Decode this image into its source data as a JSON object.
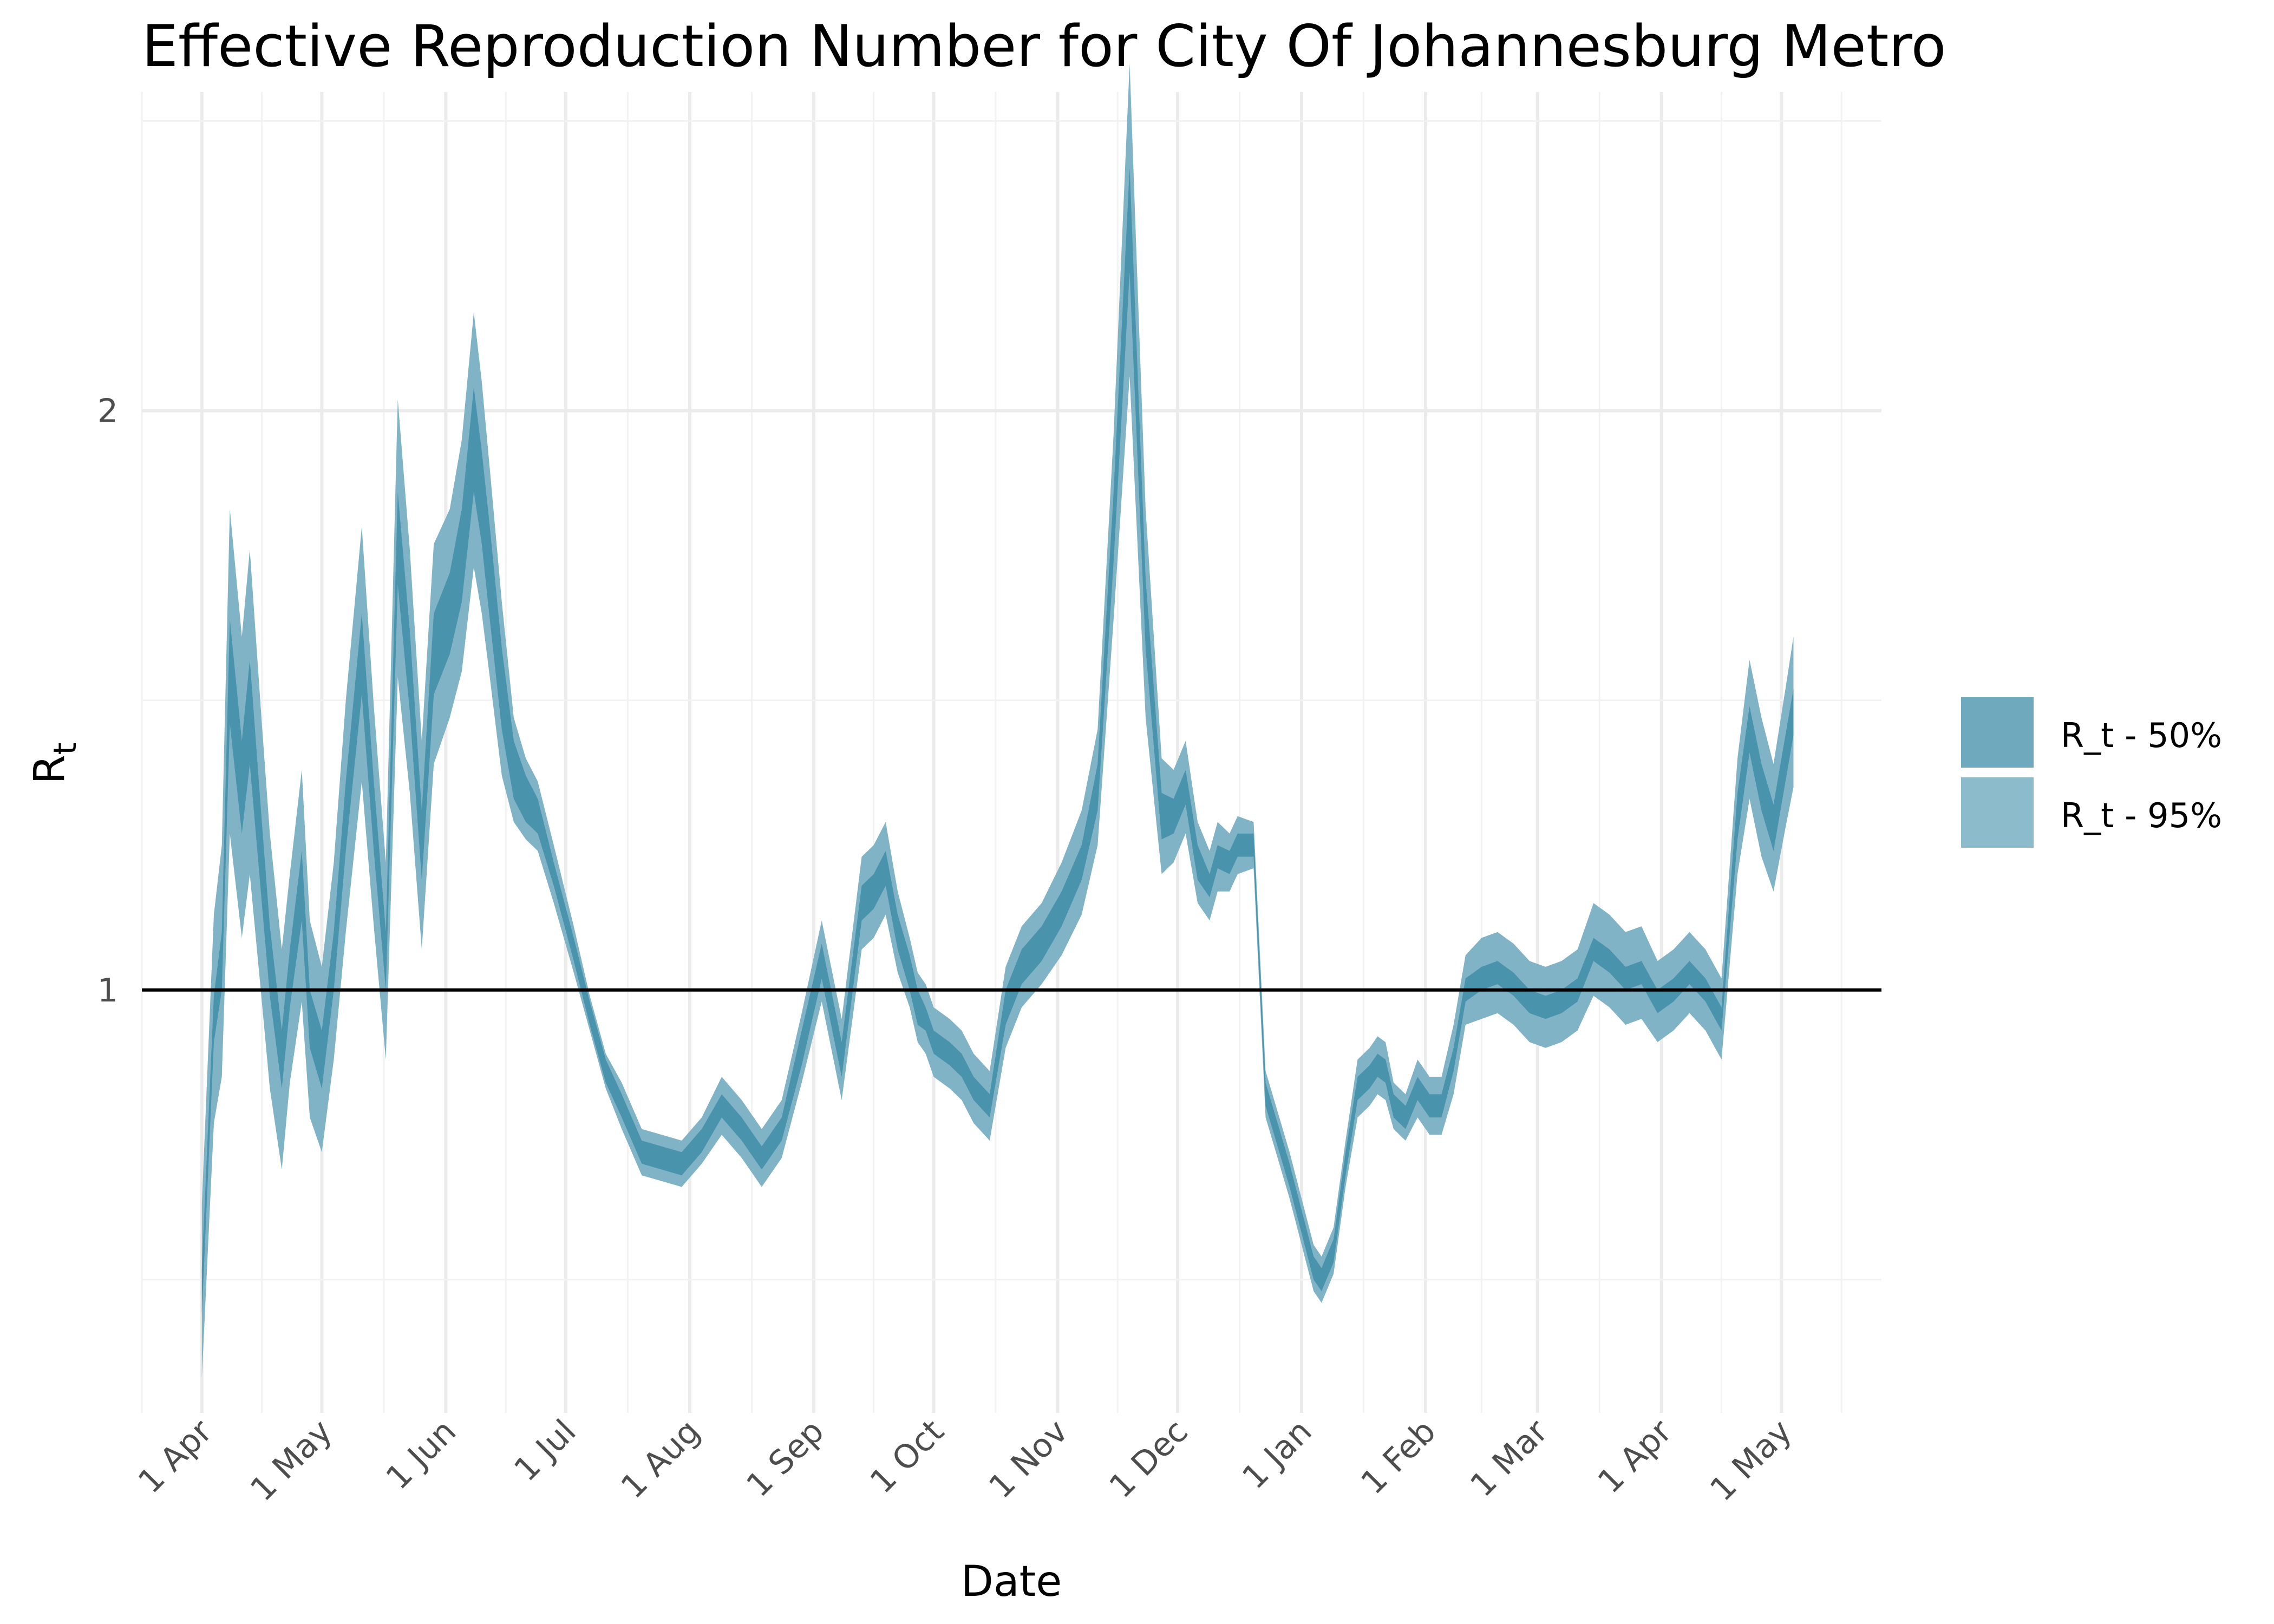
{
  "chart_data": {
    "type": "area",
    "title": "Effective Reproduction Number for City Of Johannesburg Metro",
    "xlabel": "Date",
    "ylabel_main": "R",
    "ylabel_sub": "t",
    "x_ticks": [
      "1 Apr",
      "1 May",
      "1 Jun",
      "1 Jul",
      "1 Aug",
      "1 Sep",
      "1 Oct",
      "1 Nov",
      "1 Dec",
      "1 Jan",
      "1 Feb",
      "1 Mar",
      "1 Apr",
      "1 May"
    ],
    "x_tick_days": [
      0,
      30,
      61,
      91,
      122,
      153,
      183,
      214,
      244,
      275,
      306,
      334,
      365,
      395
    ],
    "xlim_days": [
      -15,
      420
    ],
    "y_ticks": [
      1,
      2
    ],
    "ylim": [
      0.27,
      2.55
    ],
    "reference_line": 1,
    "grid": true,
    "legend_position": "right",
    "colors": {
      "band50": "#4a93ad",
      "band95": "#7fb3c5",
      "reference": "#000000"
    },
    "series": [
      {
        "name": "R_t - 50%",
        "color": "#6fa9be"
      },
      {
        "name": "R_t - 95%",
        "color": "#8cbccb"
      }
    ],
    "x_days": [
      0,
      3,
      5,
      7,
      10,
      12,
      15,
      17,
      20,
      22,
      25,
      27,
      30,
      33,
      36,
      40,
      43,
      46,
      49,
      52,
      55,
      58,
      62,
      65,
      68,
      70,
      72,
      75,
      78,
      81,
      84,
      88,
      93,
      97,
      101,
      105,
      110,
      115,
      120,
      125,
      130,
      135,
      140,
      145,
      150,
      155,
      160,
      165,
      168,
      171,
      174,
      177,
      179,
      181,
      183,
      187,
      190,
      193,
      197,
      201,
      205,
      210,
      215,
      220,
      224,
      228,
      232,
      236,
      240,
      243,
      246,
      249,
      252,
      254,
      257,
      259,
      263,
      266,
      269,
      272,
      275,
      278,
      280,
      283,
      286,
      289,
      292,
      294,
      296,
      298,
      301,
      304,
      307,
      310,
      313,
      316,
      320,
      324,
      328,
      332,
      336,
      340,
      344,
      348,
      352,
      356,
      360,
      364,
      368,
      372,
      376,
      380,
      384,
      387,
      390,
      393,
      396,
      398
    ],
    "rt_median": [
      0.48,
      0.95,
      1.05,
      1.55,
      1.35,
      1.48,
      1.22,
      1.05,
      0.88,
      1.02,
      1.18,
      0.95,
      0.88,
      1.05,
      1.3,
      1.58,
      1.3,
      1.05,
      1.78,
      1.55,
      1.25,
      1.58,
      1.65,
      1.75,
      1.95,
      1.85,
      1.72,
      1.52,
      1.38,
      1.33,
      1.3,
      1.2,
      1.07,
      0.96,
      0.86,
      0.8,
      0.72,
      0.71,
      0.7,
      0.74,
      0.8,
      0.76,
      0.71,
      0.76,
      0.9,
      1.05,
      0.88,
      1.15,
      1.17,
      1.21,
      1.1,
      1.03,
      0.97,
      0.95,
      0.91,
      0.89,
      0.87,
      0.83,
      0.8,
      0.97,
      1.04,
      1.08,
      1.14,
      1.22,
      1.35,
      1.8,
      2.33,
      1.65,
      1.3,
      1.3,
      1.35,
      1.22,
      1.18,
      1.23,
      1.22,
      1.25,
      1.25,
      0.82,
      0.75,
      0.68,
      0.6,
      0.52,
      0.5,
      0.55,
      0.7,
      0.83,
      0.85,
      0.87,
      0.86,
      0.8,
      0.78,
      0.83,
      0.8,
      0.8,
      0.88,
      1.0,
      1.02,
      1.03,
      1.01,
      0.98,
      0.97,
      0.98,
      1.0,
      1.07,
      1.05,
      1.02,
      1.03,
      0.98,
      1.0,
      1.03,
      1.0,
      0.95,
      1.3,
      1.45,
      1.35,
      1.28,
      1.4,
      1.48
    ],
    "rt_50_halfwidth": [
      0.04,
      0.04,
      0.05,
      0.09,
      0.08,
      0.09,
      0.07,
      0.06,
      0.05,
      0.05,
      0.06,
      0.05,
      0.05,
      0.05,
      0.06,
      0.07,
      0.06,
      0.05,
      0.08,
      0.07,
      0.06,
      0.07,
      0.07,
      0.08,
      0.09,
      0.08,
      0.08,
      0.07,
      0.05,
      0.04,
      0.03,
      0.02,
      0.02,
      0.02,
      0.02,
      0.02,
      0.02,
      0.02,
      0.02,
      0.02,
      0.02,
      0.02,
      0.02,
      0.02,
      0.03,
      0.03,
      0.03,
      0.03,
      0.03,
      0.03,
      0.03,
      0.03,
      0.03,
      0.02,
      0.02,
      0.02,
      0.02,
      0.02,
      0.02,
      0.03,
      0.03,
      0.03,
      0.03,
      0.03,
      0.04,
      0.06,
      0.09,
      0.06,
      0.04,
      0.03,
      0.03,
      0.03,
      0.02,
      0.02,
      0.02,
      0.02,
      0.02,
      0.02,
      0.02,
      0.02,
      0.02,
      0.02,
      0.02,
      0.02,
      0.02,
      0.02,
      0.02,
      0.02,
      0.02,
      0.02,
      0.02,
      0.02,
      0.02,
      0.02,
      0.02,
      0.02,
      0.02,
      0.02,
      0.02,
      0.02,
      0.02,
      0.02,
      0.02,
      0.02,
      0.02,
      0.02,
      0.02,
      0.02,
      0.02,
      0.02,
      0.02,
      0.02,
      0.04,
      0.04,
      0.04,
      0.04,
      0.04,
      0.04
    ],
    "rt_95_halfwidth": [
      0.15,
      0.18,
      0.2,
      0.28,
      0.26,
      0.28,
      0.24,
      0.22,
      0.19,
      0.18,
      0.2,
      0.17,
      0.16,
      0.17,
      0.2,
      0.22,
      0.19,
      0.17,
      0.24,
      0.21,
      0.18,
      0.19,
      0.18,
      0.2,
      0.22,
      0.2,
      0.18,
      0.15,
      0.09,
      0.07,
      0.06,
      0.05,
      0.04,
      0.03,
      0.03,
      0.04,
      0.04,
      0.04,
      0.04,
      0.04,
      0.05,
      0.05,
      0.05,
      0.05,
      0.06,
      0.07,
      0.07,
      0.08,
      0.08,
      0.08,
      0.07,
      0.06,
      0.06,
      0.06,
      0.06,
      0.06,
      0.06,
      0.06,
      0.06,
      0.07,
      0.07,
      0.07,
      0.08,
      0.09,
      0.1,
      0.16,
      0.27,
      0.18,
      0.1,
      0.08,
      0.08,
      0.07,
      0.06,
      0.06,
      0.05,
      0.05,
      0.04,
      0.04,
      0.04,
      0.04,
      0.04,
      0.04,
      0.04,
      0.04,
      0.04,
      0.05,
      0.05,
      0.05,
      0.05,
      0.04,
      0.04,
      0.05,
      0.05,
      0.05,
      0.06,
      0.06,
      0.07,
      0.07,
      0.07,
      0.07,
      0.07,
      0.07,
      0.07,
      0.08,
      0.08,
      0.08,
      0.08,
      0.07,
      0.07,
      0.07,
      0.07,
      0.07,
      0.1,
      0.12,
      0.12,
      0.11,
      0.12,
      0.13
    ]
  }
}
